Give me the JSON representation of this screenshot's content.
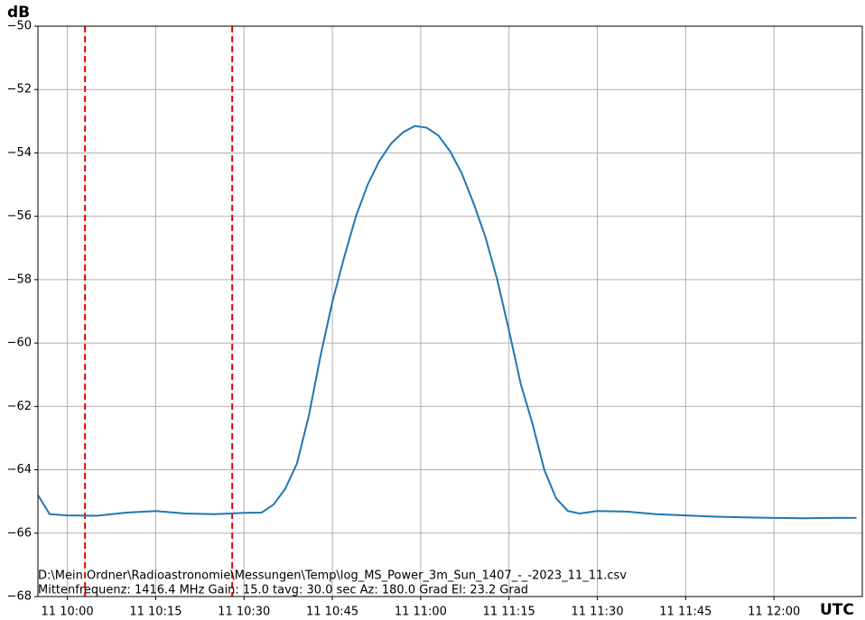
{
  "chart_data": {
    "type": "line",
    "ylabel": "dB",
    "xlabel": "UTC",
    "annotations": [
      "D:\\Mein Ordner\\Radioastronomie\\Messungen\\Temp\\log_MS_Power_3m_Sun_1407_-_-2023_11_11.csv",
      "Mittenfrequenz: 1416.4 MHz Gain: 15.0 tavg: 30.0 sec Az: 180.0 Grad El: 23.2 Grad"
    ],
    "x": [
      "11 09:55",
      "11 09:57",
      "11 10:00",
      "11 10:05",
      "11 10:10",
      "11 10:15",
      "11 10:20",
      "11 10:25",
      "11 10:30",
      "11 10:33",
      "11 10:35",
      "11 10:37",
      "11 10:39",
      "11 10:41",
      "11 10:43",
      "11 10:45",
      "11 10:47",
      "11 10:49",
      "11 10:51",
      "11 10:53",
      "11 10:55",
      "11 10:57",
      "11 10:59",
      "11 11:01",
      "11 11:03",
      "11 11:05",
      "11 11:07",
      "11 11:09",
      "11 11:11",
      "11 11:13",
      "11 11:15",
      "11 11:17",
      "11 11:19",
      "11 11:21",
      "11 11:23",
      "11 11:25",
      "11 11:27",
      "11 11:30",
      "11 11:35",
      "11 11:40",
      "11 11:45",
      "11 11:50",
      "11 11:55",
      "11 12:00",
      "11 12:05",
      "11 12:10",
      "11 12:14"
    ],
    "series": [
      {
        "color": "#1f77b4",
        "values": [
          -64.8,
          -65.4,
          -65.44,
          -65.45,
          -65.35,
          -65.3,
          -65.38,
          -65.4,
          -65.36,
          -65.35,
          -65.1,
          -64.6,
          -63.8,
          -62.3,
          -60.4,
          -58.7,
          -57.3,
          -56.0,
          -55.0,
          -54.25,
          -53.7,
          -53.35,
          -53.15,
          -53.2,
          -53.45,
          -53.95,
          -54.65,
          -55.6,
          -56.65,
          -58.0,
          -59.6,
          -61.3,
          -62.55,
          -64.0,
          -64.9,
          -65.3,
          -65.38,
          -65.3,
          -65.32,
          -65.4,
          -65.44,
          -65.48,
          -65.5,
          -65.52,
          -65.53,
          -65.52,
          -65.52
        ]
      }
    ],
    "markers": [
      {
        "x": "11 10:03",
        "color": "#e00000"
      },
      {
        "x": "11 10:28",
        "color": "#e00000"
      }
    ],
    "xlim": [
      "11 09:55",
      "11 12:15"
    ],
    "xticks": [
      "11 10:00",
      "11 10:15",
      "11 10:30",
      "11 10:45",
      "11 11:00",
      "11 11:15",
      "11 11:30",
      "11 11:45",
      "11 12:00"
    ],
    "ylim": [
      -68,
      -50
    ],
    "yticks": [
      {
        "value": -68,
        "label": "−68"
      },
      {
        "value": -66,
        "label": "−66"
      },
      {
        "value": -64,
        "label": "−64"
      },
      {
        "value": -62,
        "label": "−62"
      },
      {
        "value": -60,
        "label": "−60"
      },
      {
        "value": -58,
        "label": "−58"
      },
      {
        "value": -56,
        "label": "−56"
      },
      {
        "value": -54,
        "label": "−54"
      },
      {
        "value": -52,
        "label": "−52"
      },
      {
        "value": -50,
        "label": "−50"
      }
    ],
    "grid": true
  }
}
